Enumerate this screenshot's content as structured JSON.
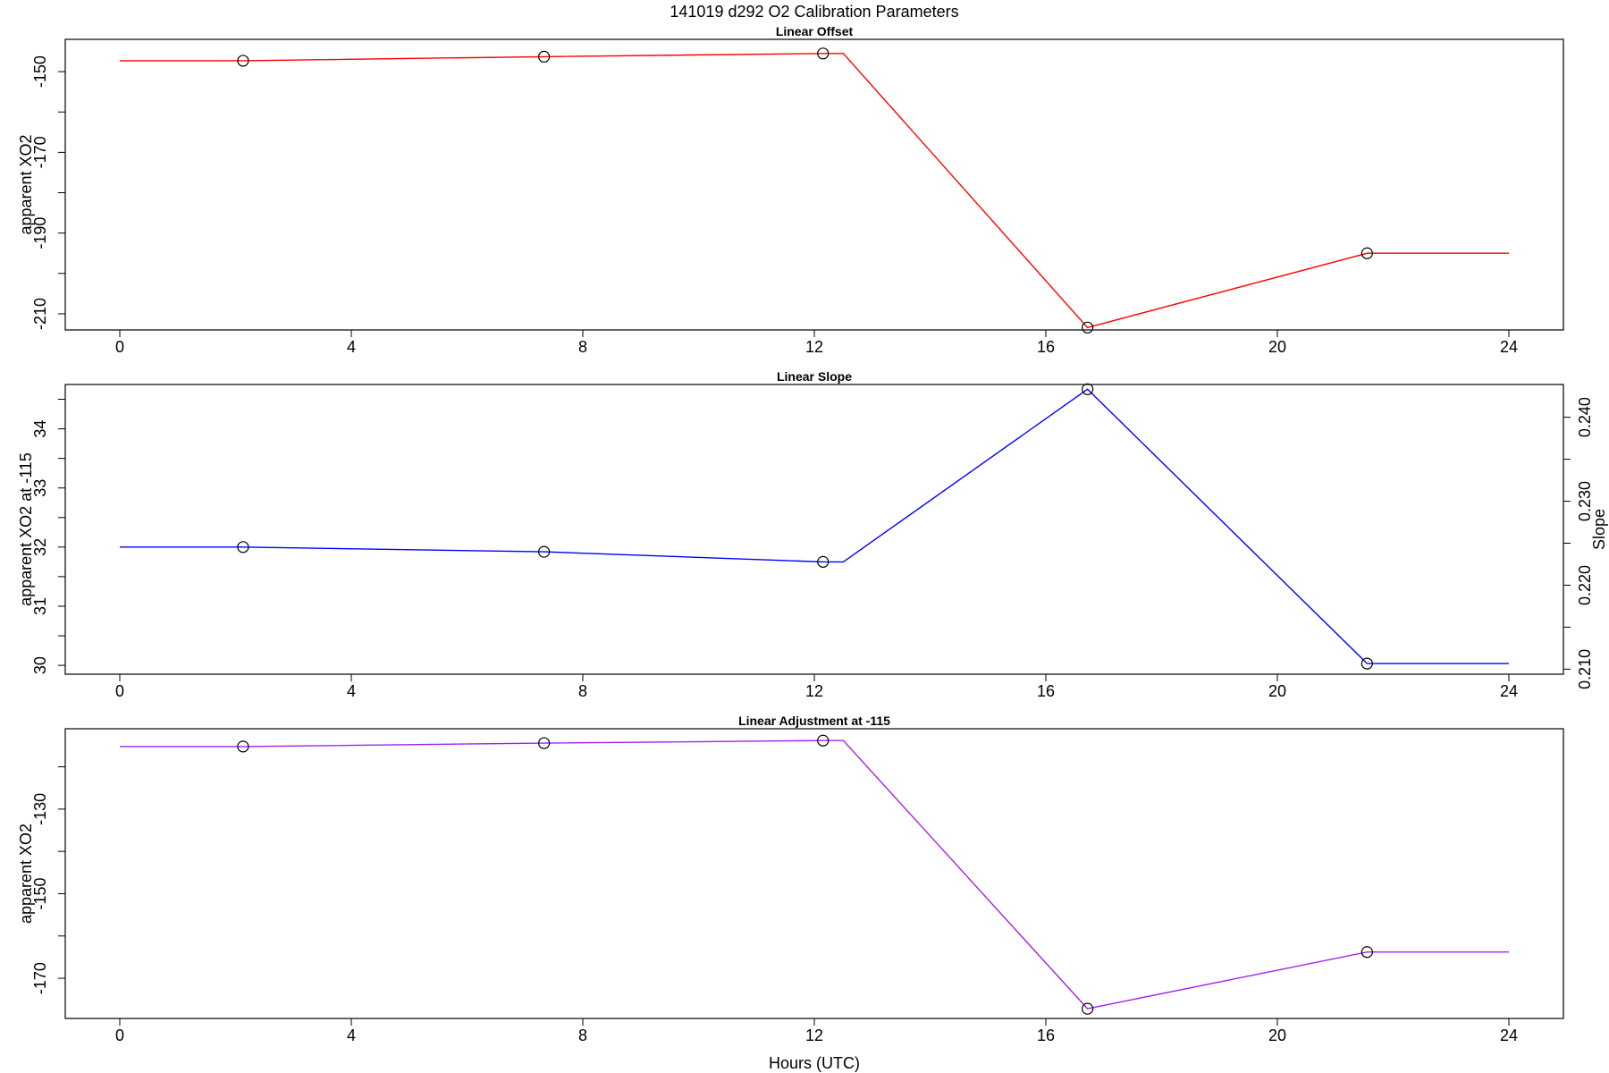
{
  "figure_title": "141019   d292   O2 Calibration Parameters",
  "xlabel": "Hours (UTC)",
  "chart_data": [
    {
      "type": "line",
      "title": "Linear Offset",
      "xlabel": "",
      "ylabel": "apparent XO2",
      "xlim": [
        0,
        24
      ],
      "ylim": [
        -214,
        -142
      ],
      "xticks": [
        "0",
        "4",
        "8",
        "12",
        "16",
        "20",
        "24"
      ],
      "yticks": [
        "-150",
        "-170",
        "-190",
        "-210"
      ],
      "line_color": "#ff0000",
      "series": [
        {
          "line_x": [
            0,
            2.13,
            7.33,
            12.15,
            12.5,
            16.72,
            21.55,
            24
          ],
          "line_y": [
            -147.3,
            -147.3,
            -146.3,
            -145.5,
            -145.5,
            -213.4,
            -195.0,
            -195.0
          ],
          "points_x": [
            2.13,
            7.33,
            12.15,
            16.72,
            21.55
          ],
          "points_y": [
            -147.3,
            -146.3,
            -145.5,
            -213.4,
            -195.0
          ]
        }
      ]
    },
    {
      "type": "line",
      "title": "Linear Slope",
      "xlabel": "",
      "ylabel": "apparent XO2 at -115",
      "ylabel_right": "Slope",
      "xlim": [
        0,
        24
      ],
      "ylim": [
        29.85,
        34.75
      ],
      "xticks": [
        "0",
        "4",
        "8",
        "12",
        "16",
        "20",
        "24"
      ],
      "yticks": [
        "30",
        "31",
        "32",
        "33",
        "34"
      ],
      "yticks_right": [
        "0.210",
        "0.220",
        "0.230",
        "0.240"
      ],
      "ylim_right": [
        0.2094,
        0.2439
      ],
      "line_color": "#0000ff",
      "series": [
        {
          "line_x": [
            0,
            2.13,
            7.33,
            12.15,
            12.5,
            16.72,
            21.55,
            24
          ],
          "line_y": [
            32.0,
            32.0,
            31.92,
            31.75,
            31.75,
            34.67,
            30.03,
            30.03
          ],
          "points_x": [
            2.13,
            7.33,
            12.15,
            16.72,
            21.55
          ],
          "points_y": [
            32.0,
            31.92,
            31.75,
            34.67,
            30.03
          ]
        }
      ]
    },
    {
      "type": "line",
      "title": "Linear Adjustment at -115",
      "xlabel": "Hours (UTC)",
      "ylabel": "apparent XO2",
      "xlim": [
        0,
        24
      ],
      "ylim": [
        -179.5,
        -111
      ],
      "xticks": [
        "0",
        "4",
        "8",
        "12",
        "16",
        "20",
        "24"
      ],
      "yticks": [
        "-130",
        "-150",
        "-170"
      ],
      "line_color": "#a020f0",
      "series": [
        {
          "line_x": [
            0,
            2.13,
            7.33,
            12.15,
            12.5,
            16.72,
            21.55,
            24
          ],
          "line_y": [
            -115.2,
            -115.2,
            -114.4,
            -113.8,
            -113.8,
            -177.2,
            -163.8,
            -163.8
          ],
          "points_x": [
            2.13,
            7.33,
            12.15,
            16.72,
            21.55
          ],
          "points_y": [
            -115.2,
            -114.4,
            -113.8,
            -177.2,
            -163.8
          ]
        }
      ]
    }
  ]
}
